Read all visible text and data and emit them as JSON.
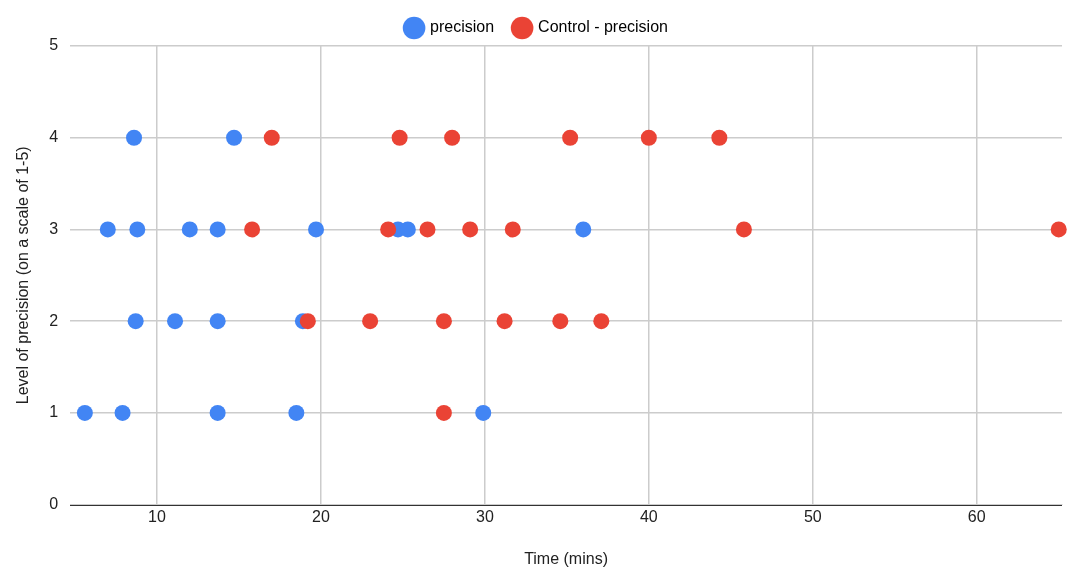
{
  "chart_data": {
    "type": "scatter",
    "xlabel": "Time (mins)",
    "ylabel": "Level of precision (on a scale of 1-5)",
    "xlim": [
      4.7,
      65.2
    ],
    "xticks": [
      10,
      20,
      30,
      40,
      50,
      60
    ],
    "ylim": [
      0,
      5
    ],
    "yticks": [
      0,
      1,
      2,
      3,
      4,
      5
    ],
    "grid": true,
    "legend": "top",
    "marker": "circle",
    "series": [
      {
        "name": "precision",
        "color": "#4285f4",
        "x": [
          8.6,
          14.7,
          7.0,
          8.8,
          12.0,
          13.7,
          19.7,
          24.7,
          25.3,
          36.0,
          8.7,
          11.1,
          13.7,
          18.9,
          5.6,
          7.9,
          13.7,
          18.5,
          29.9
        ],
        "values": [
          4,
          4,
          3,
          3,
          3,
          3,
          3,
          3,
          3,
          3,
          2,
          2,
          2,
          2,
          1,
          1,
          1,
          1,
          1
        ]
      },
      {
        "name": "Control - precision",
        "color": "#ea4335",
        "x": [
          17.0,
          24.8,
          28.0,
          35.2,
          40.0,
          44.3,
          15.8,
          24.1,
          26.5,
          29.1,
          31.7,
          45.8,
          65,
          19.2,
          23.0,
          27.5,
          31.2,
          34.6,
          37.1,
          27.5
        ],
        "values": [
          4,
          4,
          4,
          4,
          4,
          4,
          3,
          3,
          3,
          3,
          3,
          3,
          3,
          2,
          2,
          2,
          2,
          2,
          2,
          1
        ]
      }
    ]
  }
}
